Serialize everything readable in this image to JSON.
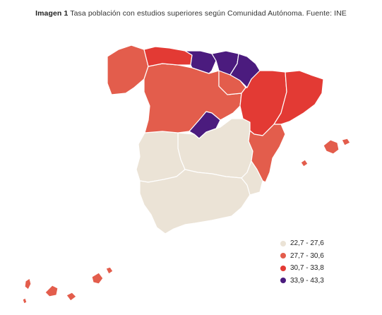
{
  "caption": {
    "label": "Imagen 1",
    "text": "Tasa población con estudios superiores según Comunidad Autónoma. Fuente: INE"
  },
  "colors": {
    "c1": "#ebe3d6",
    "c2": "#e35d4c",
    "c3": "#e33a34",
    "c4": "#4b1b7e",
    "border": "#ffffff"
  },
  "legend": [
    {
      "label": "22,7 - 27,6",
      "color": "#ebe3d6"
    },
    {
      "label": "27,7 - 30,6",
      "color": "#e35d4c"
    },
    {
      "label": "30,7 - 33,8",
      "color": "#e33a34"
    },
    {
      "label": "33,9 - 43,3",
      "color": "#4b1b7e"
    }
  ],
  "regions": [
    {
      "id": "galicia",
      "class": "27,7 - 30,6"
    },
    {
      "id": "asturias",
      "class": "30,7 - 33,8"
    },
    {
      "id": "cantabria",
      "class": "33,9 - 43,3"
    },
    {
      "id": "pais-vasco",
      "class": "33,9 - 43,3"
    },
    {
      "id": "navarra",
      "class": "33,9 - 43,3"
    },
    {
      "id": "la-rioja",
      "class": "27,7 - 30,6"
    },
    {
      "id": "castilla-y-leon",
      "class": "27,7 - 30,6"
    },
    {
      "id": "aragon",
      "class": "30,7 - 33,8"
    },
    {
      "id": "cataluna",
      "class": "30,7 - 33,8"
    },
    {
      "id": "madrid",
      "class": "33,9 - 43,3"
    },
    {
      "id": "comunidad-valenciana",
      "class": "27,7 - 30,6"
    },
    {
      "id": "baleares",
      "class": "27,7 - 30,6"
    },
    {
      "id": "castilla-la-mancha",
      "class": "22,7 - 27,6"
    },
    {
      "id": "extremadura",
      "class": "22,7 - 27,6"
    },
    {
      "id": "andalucia",
      "class": "22,7 - 27,6"
    },
    {
      "id": "murcia",
      "class": "22,7 - 27,6"
    },
    {
      "id": "canarias",
      "class": "27,7 - 30,6"
    }
  ]
}
